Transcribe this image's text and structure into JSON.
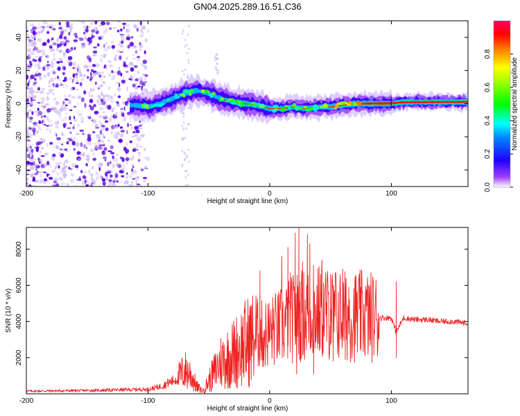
{
  "title": "GN04.2025.289.16.51.C36",
  "colors": {
    "trace": "#ee2222",
    "axis": "#000000",
    "scatter_weak": "#c9b6f2",
    "scatter_strong": "#5500dd",
    "colormap": [
      "#ffffff",
      "#8800ff",
      "#0000ff",
      "#00ffff",
      "#00ff00",
      "#ffff00",
      "#ff8800",
      "#ff0000",
      "#ff0088"
    ]
  },
  "chart_data": [
    {
      "type": "heatmap",
      "title": "GN04.2025.289.16.51.C36",
      "xlabel": "Height of straight line (km)",
      "ylabel": "Frequency (Hz)",
      "xlim": [
        -200,
        163
      ],
      "ylim": [
        -50,
        50
      ],
      "xticks": [
        -200,
        -100,
        0,
        100
      ],
      "xtick_labels": [
        "-200",
        "-100",
        "0",
        "100"
      ],
      "yticks": [
        -40,
        -20,
        0,
        20,
        40
      ],
      "ytick_labels": [
        "-40",
        "-20",
        "0",
        "20",
        "40"
      ],
      "ridge": {
        "x": [
          -110,
          -100,
          -90,
          -80,
          -70,
          -60,
          -50,
          -40,
          -30,
          -20,
          -10,
          0,
          10,
          20,
          30,
          40,
          50,
          60,
          70,
          80,
          90,
          100,
          110,
          120,
          130,
          140,
          150,
          163
        ],
        "freq": [
          -1,
          -2,
          0,
          3,
          6,
          8,
          6,
          3,
          1,
          0,
          -1,
          -3,
          -3,
          -2,
          -3,
          -2,
          -2,
          -1,
          0,
          0,
          0,
          0,
          1,
          1,
          1,
          1,
          1,
          1
        ]
      },
      "colorbar": {
        "label": "Normalized spectral amplitude",
        "range": [
          0,
          1
        ],
        "ticks": [
          0.0,
          0.2,
          0.4,
          0.6,
          0.8
        ],
        "tick_labels": [
          "0.0",
          "0.2",
          "0.4",
          "0.6",
          "0.8"
        ]
      }
    },
    {
      "type": "line",
      "xlabel": "Height of straight line (km)",
      "ylabel": "SNR (10 * v/v)",
      "xlim": [
        -200,
        163
      ],
      "ylim": [
        0,
        9200
      ],
      "xticks": [
        -200,
        -100,
        0,
        100
      ],
      "xtick_labels": [
        "-200",
        "-100",
        "0",
        "100"
      ],
      "yticks": [
        2000,
        4000,
        6000,
        8000
      ],
      "ytick_labels": [
        "2000",
        "4000",
        "6000",
        "8000"
      ],
      "series": [
        {
          "name": "SNR",
          "envelope_x": [
            -200,
            -150,
            -100,
            -90,
            -80,
            -75,
            -70,
            -65,
            -60,
            -55,
            -50,
            -40,
            -30,
            -20,
            -10,
            0,
            10,
            20,
            30,
            40,
            50,
            60,
            70,
            80,
            90,
            100,
            104,
            110,
            120,
            130,
            140,
            150,
            163
          ],
          "envelope_y": [
            150,
            180,
            250,
            400,
            700,
            900,
            1300,
            1100,
            400,
            150,
            700,
            1800,
            2200,
            2800,
            3200,
            3400,
            3700,
            4200,
            4400,
            4500,
            4400,
            4300,
            4300,
            4300,
            4200,
            4200,
            3400,
            4200,
            4100,
            4100,
            4000,
            4000,
            3900
          ],
          "peak_x": [
            -10,
            -8,
            3,
            10,
            15,
            17,
            21,
            24,
            27,
            31,
            33,
            36,
            43,
            46,
            50,
            54,
            60,
            65,
            71,
            75,
            104
          ],
          "peak_y": [
            4200,
            6800,
            4700,
            7600,
            8100,
            6700,
            8900,
            9200,
            7300,
            8800,
            8300,
            7100,
            7400,
            6700,
            6600,
            6700,
            6900,
            5900,
            6300,
            5400,
            6200
          ],
          "dip_x": [
            -60,
            -45,
            -35,
            -20,
            -5,
            22,
            36,
            52,
            62,
            72,
            82,
            104
          ],
          "dip_y": [
            150,
            600,
            700,
            1200,
            1500,
            1100,
            1100,
            1800,
            1900,
            2300,
            3000,
            2000
          ]
        }
      ]
    }
  ]
}
